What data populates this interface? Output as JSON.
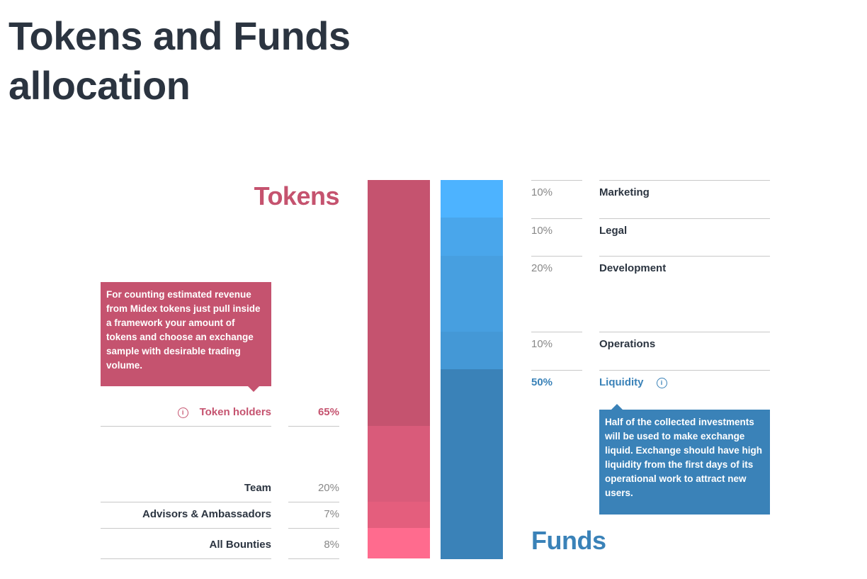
{
  "title": "Tokens and Funds allocation",
  "tokens": {
    "heading": "Tokens",
    "color": "#c5536f",
    "tooltip": "For counting estimated revenue from Midex tokens just pull inside a framework your amount of tokens and choose an exchange sample with desirable trading volume.",
    "items": [
      {
        "label": "Token holders",
        "pct": "65%",
        "value": 65,
        "color": "#c5536f"
      },
      {
        "label": "Team",
        "pct": "20%",
        "value": 20,
        "color": "#d95b7a"
      },
      {
        "label": "Advisors & Ambassadors",
        "pct": "7%",
        "value": 7,
        "color": "#e45e7d"
      },
      {
        "label": "All Bounties",
        "pct": "8%",
        "value": 8,
        "color": "#ff6b8e"
      }
    ]
  },
  "funds": {
    "heading": "Funds",
    "color": "#3a82b8",
    "tooltip": "Half of the collected investments will be used to make exchange liquid. Exchange should have high liquidity from the first days of its operational work to attract new users.",
    "items": [
      {
        "label": "Marketing",
        "pct": "10%",
        "value": 10,
        "color": "#4db3ff"
      },
      {
        "label": "Legal",
        "pct": "10%",
        "value": 10,
        "color": "#49a6eb"
      },
      {
        "label": "Development",
        "pct": "20%",
        "value": 20,
        "color": "#479fe0"
      },
      {
        "label": "Operations",
        "pct": "10%",
        "value": 10,
        "color": "#4498d6"
      },
      {
        "label": "Liquidity",
        "pct": "50%",
        "value": 50,
        "color": "#3a82b8"
      }
    ]
  }
}
